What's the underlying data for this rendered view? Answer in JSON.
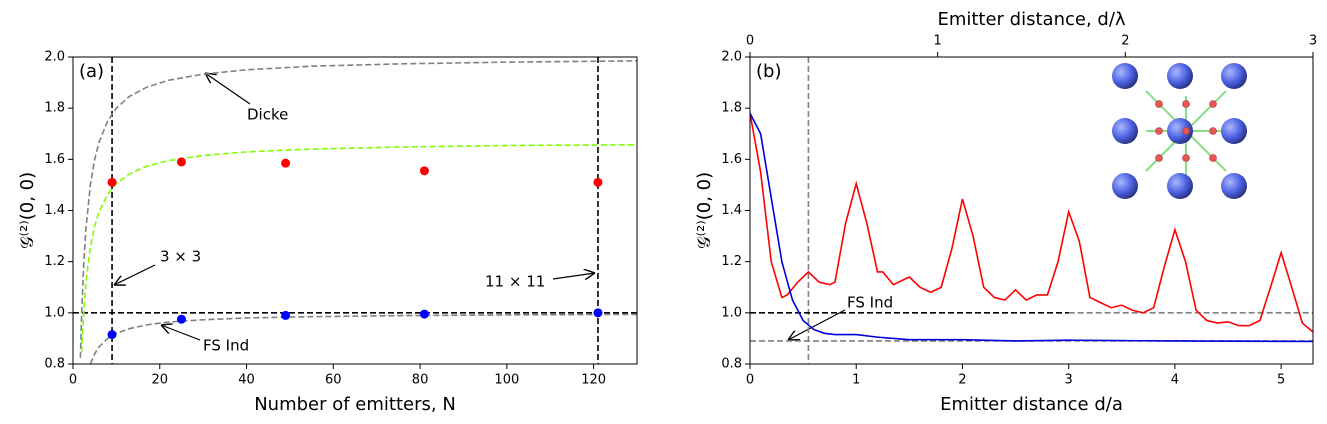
{
  "chart_data": [
    {
      "type": "line",
      "panel_label": "(a)",
      "xlabel": "Number of emitters, N",
      "ylabel": "𝒢⁽²⁾(0, 0)",
      "xlim": [
        0,
        130
      ],
      "xticks": [
        0,
        20,
        40,
        60,
        80,
        100,
        120
      ],
      "ylim": [
        0.8,
        2.0
      ],
      "yticks": [
        {
          "value": 0.8,
          "label": "0.8"
        },
        {
          "value": 1.0,
          "label": "1.0"
        },
        {
          "value": 1.2,
          "label": "1.2"
        },
        {
          "value": 1.4,
          "label": "1.4"
        },
        {
          "value": 1.6,
          "label": "1.6"
        },
        {
          "value": 1.8,
          "label": "1.8"
        },
        {
          "value": 2.0,
          "label": "2.0"
        }
      ],
      "series": [
        {
          "color": "#808080",
          "style": "dashed",
          "x": [
            1.7,
            2,
            2.5,
            3,
            4,
            5,
            6,
            8,
            10,
            13,
            17,
            22,
            30,
            40,
            55,
            75,
            100,
            130
          ],
          "values": [
            0.824,
            1.0,
            1.2,
            1.333,
            1.5,
            1.6,
            1.667,
            1.75,
            1.8,
            1.846,
            1.882,
            1.909,
            1.933,
            1.95,
            1.964,
            1.973,
            1.98,
            1.985
          ]
        },
        {
          "color": "#7fff00",
          "style": "dashed",
          "x": [
            2,
            2.5,
            3,
            4,
            5,
            6,
            8,
            10,
            13,
            17,
            22,
            30,
            40,
            55,
            75,
            100,
            130
          ],
          "values": [
            0.845,
            1.01,
            1.12,
            1.258,
            1.34,
            1.395,
            1.464,
            1.505,
            1.543,
            1.573,
            1.595,
            1.615,
            1.629,
            1.64,
            1.648,
            1.654,
            1.657
          ]
        },
        {
          "color": "#808080",
          "style": "dashed",
          "x": [
            4,
            5,
            6,
            8,
            10,
            13,
            17,
            22,
            30,
            40,
            55,
            75,
            100,
            130
          ],
          "values": [
            0.8,
            0.84,
            0.867,
            0.9,
            0.92,
            0.938,
            0.953,
            0.964,
            0.973,
            0.98,
            0.985,
            0.989,
            0.992,
            0.994
          ]
        },
        {
          "color": "#ff0000",
          "style": "markers",
          "x": [
            9,
            25,
            49,
            81,
            121
          ],
          "values": [
            1.51,
            1.59,
            1.585,
            1.555,
            1.51
          ]
        },
        {
          "color": "#0000ff",
          "style": "markers",
          "x": [
            9,
            25,
            49,
            81,
            121
          ],
          "values": [
            0.915,
            0.975,
            0.99,
            0.995,
            1.0
          ]
        }
      ],
      "vlines": [
        {
          "value": 9,
          "color": "#000000"
        },
        {
          "value": 121,
          "color": "#000000"
        }
      ],
      "hlines": [
        {
          "value": 1.0,
          "color": "#000000"
        }
      ],
      "annotations": [
        "Dicke",
        "3 × 3",
        "11 × 11",
        "FS Ind"
      ]
    },
    {
      "type": "line",
      "panel_label": "(b)",
      "xlabel": "Emitter distance d/a",
      "ylabel": "𝒢⁽²⁾(0, 0)",
      "x2label": "Emitter distance, d/λ",
      "xlim": [
        0,
        5.3
      ],
      "xticks": [
        0,
        1,
        2,
        3,
        4,
        5
      ],
      "x2lim": [
        0,
        3
      ],
      "x2ticks": [
        0,
        1,
        2,
        3
      ],
      "ylim": [
        0.8,
        2.0
      ],
      "yticks": [
        {
          "value": 0.8,
          "label": "0.8"
        },
        {
          "value": 1.0,
          "label": "1.0"
        },
        {
          "value": 1.2,
          "label": "1.2"
        },
        {
          "value": 1.4,
          "label": "1.4"
        },
        {
          "value": 1.6,
          "label": "1.6"
        },
        {
          "value": 1.8,
          "label": "1.8"
        },
        {
          "value": 2.0,
          "label": "2.0"
        }
      ],
      "series": [
        {
          "color": "#808080",
          "style": "dashed",
          "x": [
            0,
            5.3
          ],
          "values": [
            0.89,
            0.89
          ]
        },
        {
          "color": "#808080",
          "style": "dashed",
          "x": [
            3,
            5.3
          ],
          "values": [
            1.0,
            1.0
          ]
        },
        {
          "color": "#000000",
          "style": "dashed",
          "x": [
            0,
            3
          ],
          "values": [
            1.0,
            1.0
          ]
        },
        {
          "color": "#ff0000",
          "style": "solid",
          "x": [
            0,
            0.1,
            0.2,
            0.3,
            0.35,
            0.45,
            0.55,
            0.65,
            0.75,
            0.8,
            0.9,
            1.0,
            1.1,
            1.2,
            1.25,
            1.35,
            1.5,
            1.6,
            1.7,
            1.8,
            1.9,
            2.0,
            2.1,
            2.2,
            2.3,
            2.4,
            2.5,
            2.6,
            2.7,
            2.8,
            2.9,
            3.0,
            3.1,
            3.2,
            3.3,
            3.4,
            3.5,
            3.6,
            3.7,
            3.8,
            3.9,
            4.0,
            4.1,
            4.2,
            4.3,
            4.4,
            4.5,
            4.6,
            4.7,
            4.8,
            4.9,
            5.0,
            5.1,
            5.2,
            5.3
          ],
          "values": [
            1.78,
            1.55,
            1.2,
            1.06,
            1.07,
            1.12,
            1.16,
            1.12,
            1.11,
            1.12,
            1.35,
            1.505,
            1.35,
            1.16,
            1.16,
            1.11,
            1.14,
            1.1,
            1.08,
            1.1,
            1.25,
            1.445,
            1.3,
            1.1,
            1.06,
            1.05,
            1.09,
            1.05,
            1.07,
            1.07,
            1.2,
            1.395,
            1.28,
            1.06,
            1.04,
            1.02,
            1.03,
            1.01,
            1.0,
            1.02,
            1.18,
            1.325,
            1.2,
            1.01,
            0.97,
            0.96,
            0.965,
            0.95,
            0.95,
            0.97,
            1.1,
            1.235,
            1.1,
            0.96,
            0.925
          ]
        },
        {
          "color": "#0000dd",
          "style": "solid",
          "x": [
            0,
            0.1,
            0.2,
            0.3,
            0.4,
            0.5,
            0.6,
            0.7,
            0.8,
            1.0,
            1.2,
            1.5,
            2.0,
            2.5,
            3.0,
            4.0,
            5.3
          ],
          "values": [
            1.78,
            1.7,
            1.45,
            1.2,
            1.05,
            0.97,
            0.935,
            0.92,
            0.915,
            0.915,
            0.905,
            0.895,
            0.895,
            0.89,
            0.893,
            0.89,
            0.888
          ]
        }
      ],
      "vlines": [
        {
          "value": 0.55,
          "color": "#808080"
        }
      ],
      "hlines": [],
      "annotations": [
        "FS Ind"
      ]
    }
  ]
}
